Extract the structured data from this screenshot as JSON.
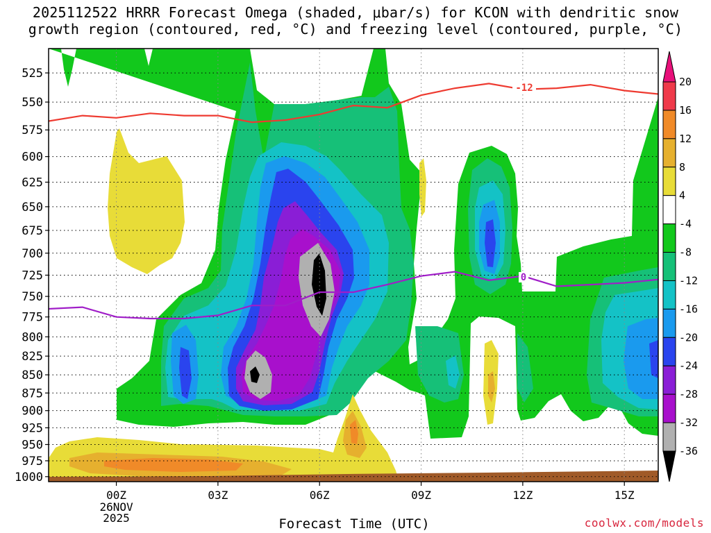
{
  "title": {
    "line1": "2025112522 HRRR Forecast Omega (shaded, μbar/s) for KCON with dendritic snow",
    "line2": "growth region (contoured, red, °C) and freezing level (contoured, purple, °C)"
  },
  "credit": "coolwx.com/models",
  "chart_data": {
    "type": "heatmap",
    "xlabel": "Forecast Time (UTC)",
    "x_ticks": [
      {
        "hour": 0,
        "label": "00Z",
        "sub1": "26NOV",
        "sub2": "2025"
      },
      {
        "hour": 3,
        "label": "03Z"
      },
      {
        "hour": 6,
        "label": "06Z"
      },
      {
        "hour": 9,
        "label": "09Z"
      },
      {
        "hour": 12,
        "label": "12Z"
      },
      {
        "hour": 15,
        "label": "15Z"
      }
    ],
    "x_range_hours": [
      -2,
      16
    ],
    "y_ticks": [
      525,
      550,
      575,
      600,
      625,
      650,
      675,
      700,
      725,
      750,
      775,
      800,
      825,
      850,
      875,
      900,
      925,
      950,
      975,
      1000
    ],
    "y_range_hPa": [
      505,
      1008
    ],
    "colorbar": {
      "levels": [
        "20",
        "16",
        "12",
        "8",
        "4",
        "-4",
        "-8",
        "-12",
        "-16",
        "-20",
        "-24",
        "-28",
        "-32",
        "-36"
      ],
      "colors": [
        "#ef3a4a",
        "#f08a28",
        "#e6b02e",
        "#e8dc38",
        "#ffffff",
        "#12c81c",
        "#16c078",
        "#14c2c6",
        "#1a9aee",
        "#2a44ee",
        "#8a1ed6",
        "#a810cc",
        "#b0b0b0",
        "#000000"
      ],
      "top_arrow_color": "#e8107a",
      "bottom_arrow_color": "#000000"
    },
    "dgz_isotherm": {
      "label": "-12",
      "color": "#ee3a30",
      "points": [
        [
          -2.0,
          567
        ],
        [
          -1.0,
          562
        ],
        [
          0.0,
          564
        ],
        [
          1.0,
          560
        ],
        [
          2.0,
          562
        ],
        [
          3.0,
          562
        ],
        [
          4.0,
          568
        ],
        [
          5.0,
          566
        ],
        [
          6.0,
          561
        ],
        [
          7.0,
          553
        ],
        [
          8.0,
          555
        ],
        [
          9.0,
          544
        ],
        [
          10.0,
          538
        ],
        [
          11.0,
          534
        ],
        [
          12.0,
          539
        ],
        [
          13.0,
          538
        ],
        [
          14.0,
          535
        ],
        [
          15.0,
          540
        ],
        [
          16.0,
          543
        ]
      ]
    },
    "freezing_level": {
      "label": "0",
      "color": "#a01ec8",
      "points": [
        [
          -2.0,
          765
        ],
        [
          -1.0,
          763
        ],
        [
          0.0,
          775
        ],
        [
          1.0,
          777
        ],
        [
          2.0,
          777
        ],
        [
          3.0,
          773
        ],
        [
          4.0,
          761
        ],
        [
          5.0,
          761
        ],
        [
          6.0,
          745
        ],
        [
          7.0,
          745
        ],
        [
          8.0,
          736
        ],
        [
          9.0,
          726
        ],
        [
          10.0,
          721
        ],
        [
          11.0,
          731
        ],
        [
          12.0,
          726
        ],
        [
          13.0,
          738
        ],
        [
          14.0,
          736
        ],
        [
          15.0,
          734
        ],
        [
          16.0,
          730
        ]
      ]
    },
    "terrain_color": "#a05a28"
  }
}
